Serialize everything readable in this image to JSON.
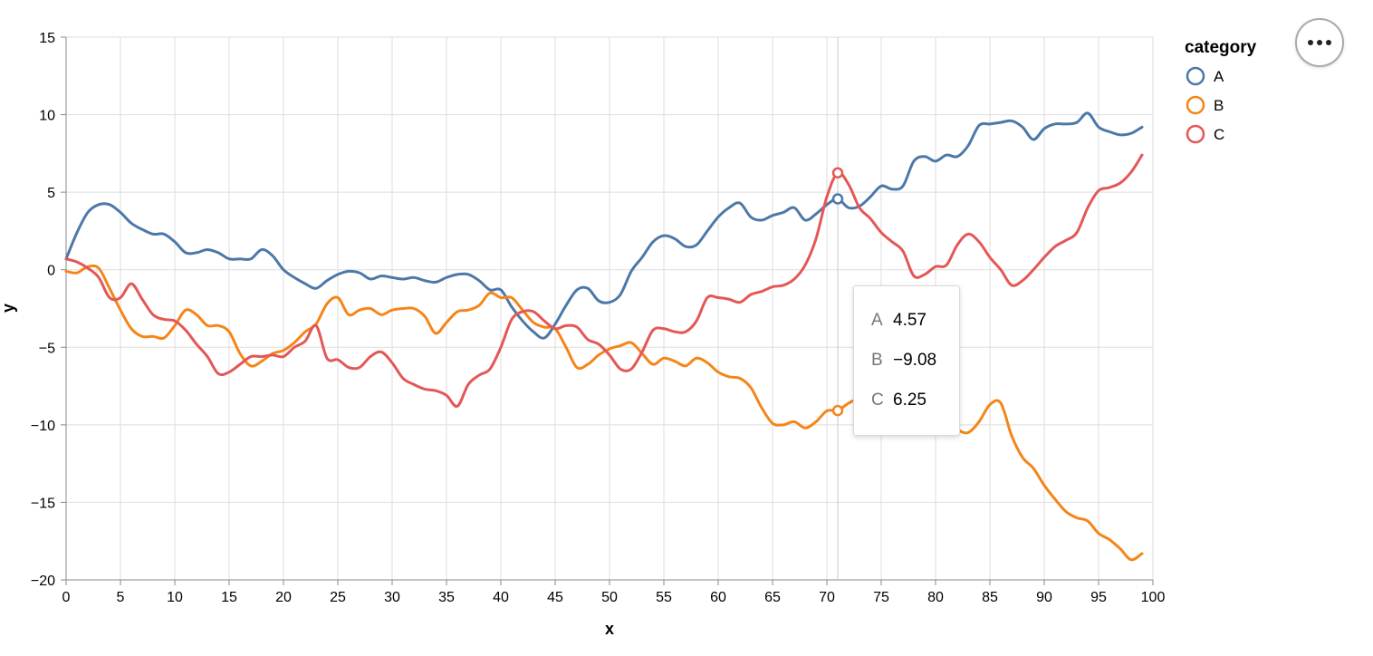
{
  "chart_data": {
    "type": "line",
    "xlabel": "x",
    "ylabel": "y",
    "xlim": [
      0,
      100
    ],
    "ylim": [
      -20,
      15
    ],
    "x_ticks": [
      0,
      5,
      10,
      15,
      20,
      25,
      30,
      35,
      40,
      45,
      50,
      55,
      60,
      65,
      70,
      75,
      80,
      85,
      90,
      95,
      100
    ],
    "y_ticks": [
      -20,
      -15,
      -10,
      -5,
      0,
      5,
      10,
      15
    ],
    "y_tick_labels": [
      "−20",
      "−15",
      "−10",
      "−5",
      "0",
      "5",
      "10",
      "15"
    ],
    "grid": true,
    "legend": {
      "title": "category",
      "placement": "top-right"
    },
    "series": [
      {
        "name": "A",
        "color": "#4c78a8",
        "points": [
          [
            0,
            0.7
          ],
          [
            1,
            2.4
          ],
          [
            2,
            3.7
          ],
          [
            3,
            4.2
          ],
          [
            4,
            4.2
          ],
          [
            5,
            3.7
          ],
          [
            6,
            3.0
          ],
          [
            7,
            2.6
          ],
          [
            8,
            2.3
          ],
          [
            9,
            2.3
          ],
          [
            10,
            1.8
          ],
          [
            11,
            1.1
          ],
          [
            12,
            1.1
          ],
          [
            13,
            1.3
          ],
          [
            14,
            1.1
          ],
          [
            15,
            0.7
          ],
          [
            16,
            0.7
          ],
          [
            17,
            0.7
          ],
          [
            18,
            1.3
          ],
          [
            19,
            0.9
          ],
          [
            20,
            0.0
          ],
          [
            21,
            -0.5
          ],
          [
            22,
            -0.9
          ],
          [
            23,
            -1.2
          ],
          [
            24,
            -0.7
          ],
          [
            25,
            -0.3
          ],
          [
            26,
            -0.1
          ],
          [
            27,
            -0.2
          ],
          [
            28,
            -0.6
          ],
          [
            29,
            -0.4
          ],
          [
            30,
            -0.5
          ],
          [
            31,
            -0.6
          ],
          [
            32,
            -0.5
          ],
          [
            33,
            -0.7
          ],
          [
            34,
            -0.8
          ],
          [
            35,
            -0.5
          ],
          [
            36,
            -0.3
          ],
          [
            37,
            -0.3
          ],
          [
            38,
            -0.7
          ],
          [
            39,
            -1.3
          ],
          [
            40,
            -1.3
          ],
          [
            41,
            -2.4
          ],
          [
            42,
            -3.3
          ],
          [
            43,
            -4.0
          ],
          [
            44,
            -4.4
          ],
          [
            45,
            -3.5
          ],
          [
            46,
            -2.3
          ],
          [
            47,
            -1.3
          ],
          [
            48,
            -1.2
          ],
          [
            49,
            -2.0
          ],
          [
            50,
            -2.1
          ],
          [
            51,
            -1.6
          ],
          [
            52,
            -0.1
          ],
          [
            53,
            0.8
          ],
          [
            54,
            1.8
          ],
          [
            55,
            2.2
          ],
          [
            56,
            2.0
          ],
          [
            57,
            1.5
          ],
          [
            58,
            1.6
          ],
          [
            59,
            2.5
          ],
          [
            60,
            3.4
          ],
          [
            61,
            4.0
          ],
          [
            62,
            4.3
          ],
          [
            63,
            3.4
          ],
          [
            64,
            3.2
          ],
          [
            65,
            3.5
          ],
          [
            66,
            3.7
          ],
          [
            67,
            4.0
          ],
          [
            68,
            3.2
          ],
          [
            69,
            3.6
          ],
          [
            70,
            4.2
          ],
          [
            71,
            4.57
          ],
          [
            72,
            4.0
          ],
          [
            73,
            4.1
          ],
          [
            74,
            4.7
          ],
          [
            75,
            5.4
          ],
          [
            76,
            5.2
          ],
          [
            77,
            5.4
          ],
          [
            78,
            7.0
          ],
          [
            79,
            7.3
          ],
          [
            80,
            7.0
          ],
          [
            81,
            7.4
          ],
          [
            82,
            7.3
          ],
          [
            83,
            8.0
          ],
          [
            84,
            9.3
          ],
          [
            85,
            9.4
          ],
          [
            86,
            9.5
          ],
          [
            87,
            9.6
          ],
          [
            88,
            9.2
          ],
          [
            89,
            8.4
          ],
          [
            90,
            9.1
          ],
          [
            91,
            9.4
          ],
          [
            92,
            9.4
          ],
          [
            93,
            9.5
          ],
          [
            94,
            10.1
          ],
          [
            95,
            9.2
          ],
          [
            96,
            8.9
          ],
          [
            97,
            8.7
          ],
          [
            98,
            8.8
          ],
          [
            99,
            9.2
          ]
        ]
      },
      {
        "name": "B",
        "color": "#f58518",
        "points": [
          [
            0,
            -0.1
          ],
          [
            1,
            -0.2
          ],
          [
            2,
            0.2
          ],
          [
            3,
            0.1
          ],
          [
            4,
            -1.2
          ],
          [
            5,
            -2.6
          ],
          [
            6,
            -3.8
          ],
          [
            7,
            -4.3
          ],
          [
            8,
            -4.3
          ],
          [
            9,
            -4.4
          ],
          [
            10,
            -3.6
          ],
          [
            11,
            -2.6
          ],
          [
            12,
            -2.9
          ],
          [
            13,
            -3.6
          ],
          [
            14,
            -3.6
          ],
          [
            15,
            -4.0
          ],
          [
            16,
            -5.4
          ],
          [
            17,
            -6.2
          ],
          [
            18,
            -5.9
          ],
          [
            19,
            -5.4
          ],
          [
            20,
            -5.2
          ],
          [
            21,
            -4.7
          ],
          [
            22,
            -4.0
          ],
          [
            23,
            -3.5
          ],
          [
            24,
            -2.2
          ],
          [
            25,
            -1.8
          ],
          [
            26,
            -2.9
          ],
          [
            27,
            -2.6
          ],
          [
            28,
            -2.5
          ],
          [
            29,
            -2.9
          ],
          [
            30,
            -2.6
          ],
          [
            31,
            -2.5
          ],
          [
            32,
            -2.5
          ],
          [
            33,
            -3.0
          ],
          [
            34,
            -4.1
          ],
          [
            35,
            -3.4
          ],
          [
            36,
            -2.7
          ],
          [
            37,
            -2.6
          ],
          [
            38,
            -2.3
          ],
          [
            39,
            -1.5
          ],
          [
            40,
            -1.8
          ],
          [
            41,
            -1.8
          ],
          [
            42,
            -2.6
          ],
          [
            43,
            -3.4
          ],
          [
            44,
            -3.7
          ],
          [
            45,
            -3.8
          ],
          [
            46,
            -5.0
          ],
          [
            47,
            -6.3
          ],
          [
            48,
            -6.1
          ],
          [
            49,
            -5.5
          ],
          [
            50,
            -5.1
          ],
          [
            51,
            -4.9
          ],
          [
            52,
            -4.7
          ],
          [
            53,
            -5.4
          ],
          [
            54,
            -6.1
          ],
          [
            55,
            -5.7
          ],
          [
            56,
            -5.9
          ],
          [
            57,
            -6.2
          ],
          [
            58,
            -5.7
          ],
          [
            59,
            -6.0
          ],
          [
            60,
            -6.6
          ],
          [
            61,
            -6.9
          ],
          [
            62,
            -7.0
          ],
          [
            63,
            -7.6
          ],
          [
            64,
            -8.9
          ],
          [
            65,
            -9.9
          ],
          [
            66,
            -10.0
          ],
          [
            67,
            -9.8
          ],
          [
            68,
            -10.2
          ],
          [
            69,
            -9.8
          ],
          [
            70,
            -9.1
          ],
          [
            71,
            -9.08
          ],
          [
            72,
            -8.6
          ],
          [
            73,
            -8.3
          ],
          [
            74,
            -8.4
          ],
          [
            75,
            -8.8
          ],
          [
            76,
            -8.5
          ],
          [
            77,
            -8.3
          ],
          [
            78,
            -8.4
          ],
          [
            79,
            -8.8
          ],
          [
            80,
            -9.1
          ],
          [
            81,
            -9.7
          ],
          [
            82,
            -10.3
          ],
          [
            83,
            -10.5
          ],
          [
            84,
            -9.8
          ],
          [
            85,
            -8.7
          ],
          [
            86,
            -8.6
          ],
          [
            87,
            -10.7
          ],
          [
            88,
            -12.1
          ],
          [
            89,
            -12.8
          ],
          [
            90,
            -13.9
          ],
          [
            91,
            -14.8
          ],
          [
            92,
            -15.6
          ],
          [
            93,
            -16.0
          ],
          [
            94,
            -16.2
          ],
          [
            95,
            -17.0
          ],
          [
            96,
            -17.4
          ],
          [
            97,
            -18.0
          ],
          [
            98,
            -18.7
          ],
          [
            99,
            -18.3
          ]
        ]
      },
      {
        "name": "C",
        "color": "#e45756",
        "points": [
          [
            0,
            0.7
          ],
          [
            1,
            0.5
          ],
          [
            2,
            0.1
          ],
          [
            3,
            -0.5
          ],
          [
            4,
            -1.8
          ],
          [
            5,
            -1.8
          ],
          [
            6,
            -0.9
          ],
          [
            7,
            -1.9
          ],
          [
            8,
            -2.9
          ],
          [
            9,
            -3.2
          ],
          [
            10,
            -3.3
          ],
          [
            11,
            -3.9
          ],
          [
            12,
            -4.8
          ],
          [
            13,
            -5.6
          ],
          [
            14,
            -6.7
          ],
          [
            15,
            -6.6
          ],
          [
            16,
            -6.1
          ],
          [
            17,
            -5.6
          ],
          [
            18,
            -5.6
          ],
          [
            19,
            -5.5
          ],
          [
            20,
            -5.6
          ],
          [
            21,
            -5.0
          ],
          [
            22,
            -4.6
          ],
          [
            23,
            -3.6
          ],
          [
            24,
            -5.7
          ],
          [
            25,
            -5.8
          ],
          [
            26,
            -6.3
          ],
          [
            27,
            -6.3
          ],
          [
            28,
            -5.6
          ],
          [
            29,
            -5.3
          ],
          [
            30,
            -6.0
          ],
          [
            31,
            -7.0
          ],
          [
            32,
            -7.4
          ],
          [
            33,
            -7.7
          ],
          [
            34,
            -7.8
          ],
          [
            35,
            -8.1
          ],
          [
            36,
            -8.8
          ],
          [
            37,
            -7.4
          ],
          [
            38,
            -6.8
          ],
          [
            39,
            -6.4
          ],
          [
            40,
            -5.0
          ],
          [
            41,
            -3.2
          ],
          [
            42,
            -2.7
          ],
          [
            43,
            -2.7
          ],
          [
            44,
            -3.3
          ],
          [
            45,
            -3.8
          ],
          [
            46,
            -3.6
          ],
          [
            47,
            -3.7
          ],
          [
            48,
            -4.5
          ],
          [
            49,
            -4.8
          ],
          [
            50,
            -5.5
          ],
          [
            51,
            -6.4
          ],
          [
            52,
            -6.4
          ],
          [
            53,
            -5.3
          ],
          [
            54,
            -3.9
          ],
          [
            55,
            -3.8
          ],
          [
            56,
            -4.0
          ],
          [
            57,
            -4.0
          ],
          [
            58,
            -3.3
          ],
          [
            59,
            -1.8
          ],
          [
            60,
            -1.8
          ],
          [
            61,
            -1.9
          ],
          [
            62,
            -2.1
          ],
          [
            63,
            -1.6
          ],
          [
            64,
            -1.4
          ],
          [
            65,
            -1.1
          ],
          [
            66,
            -1.0
          ],
          [
            67,
            -0.6
          ],
          [
            68,
            0.3
          ],
          [
            69,
            2.0
          ],
          [
            70,
            4.7
          ],
          [
            71,
            6.25
          ],
          [
            72,
            5.5
          ],
          [
            73,
            4.0
          ],
          [
            74,
            3.3
          ],
          [
            75,
            2.4
          ],
          [
            76,
            1.8
          ],
          [
            77,
            1.2
          ],
          [
            78,
            -0.4
          ],
          [
            79,
            -0.3
          ],
          [
            80,
            0.2
          ],
          [
            81,
            0.3
          ],
          [
            82,
            1.6
          ],
          [
            83,
            2.3
          ],
          [
            84,
            1.8
          ],
          [
            85,
            0.8
          ],
          [
            86,
            0.0
          ],
          [
            87,
            -1.0
          ],
          [
            88,
            -0.7
          ],
          [
            89,
            0.0
          ],
          [
            90,
            0.8
          ],
          [
            91,
            1.5
          ],
          [
            92,
            1.9
          ],
          [
            93,
            2.4
          ],
          [
            94,
            4.0
          ],
          [
            95,
            5.1
          ],
          [
            96,
            5.3
          ],
          [
            97,
            5.6
          ],
          [
            98,
            6.3
          ],
          [
            99,
            7.4
          ]
        ]
      }
    ],
    "hover": {
      "x": 71,
      "values": {
        "A": 4.57,
        "B": -9.08,
        "C": 6.25
      }
    }
  },
  "tooltip": {
    "rows": [
      {
        "key": "A",
        "value": "4.57"
      },
      {
        "key": "B",
        "value": "−9.08"
      },
      {
        "key": "C",
        "value": "6.25"
      }
    ]
  },
  "menu": {
    "icon": "more-horizontal-icon"
  }
}
